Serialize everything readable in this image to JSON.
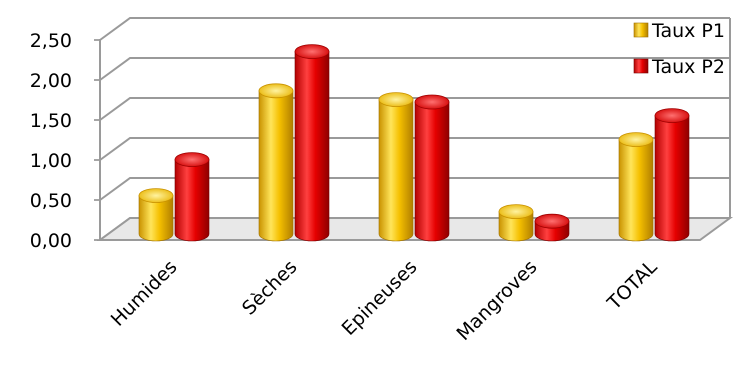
{
  "chart_data": {
    "type": "bar",
    "title": "",
    "xlabel": "",
    "ylabel": "",
    "categories": [
      "Humides",
      "Sèches",
      "Epineuses",
      "Mangroves",
      "TOTAL"
    ],
    "series": [
      {
        "name": "Taux P1",
        "values": [
          0.48,
          1.79,
          1.68,
          0.28,
          1.18
        ],
        "color": "#F5C000"
      },
      {
        "name": "Taux P2",
        "values": [
          0.93,
          2.28,
          1.65,
          0.16,
          1.48
        ],
        "color": "#E60000"
      }
    ],
    "ylim": [
      0,
      2.5
    ],
    "yticks": [
      "0,00",
      "0,50",
      "1,00",
      "1,50",
      "2,00",
      "2,50"
    ],
    "grid": true,
    "legend_position": "top-right",
    "style": "3d-cylinder"
  }
}
